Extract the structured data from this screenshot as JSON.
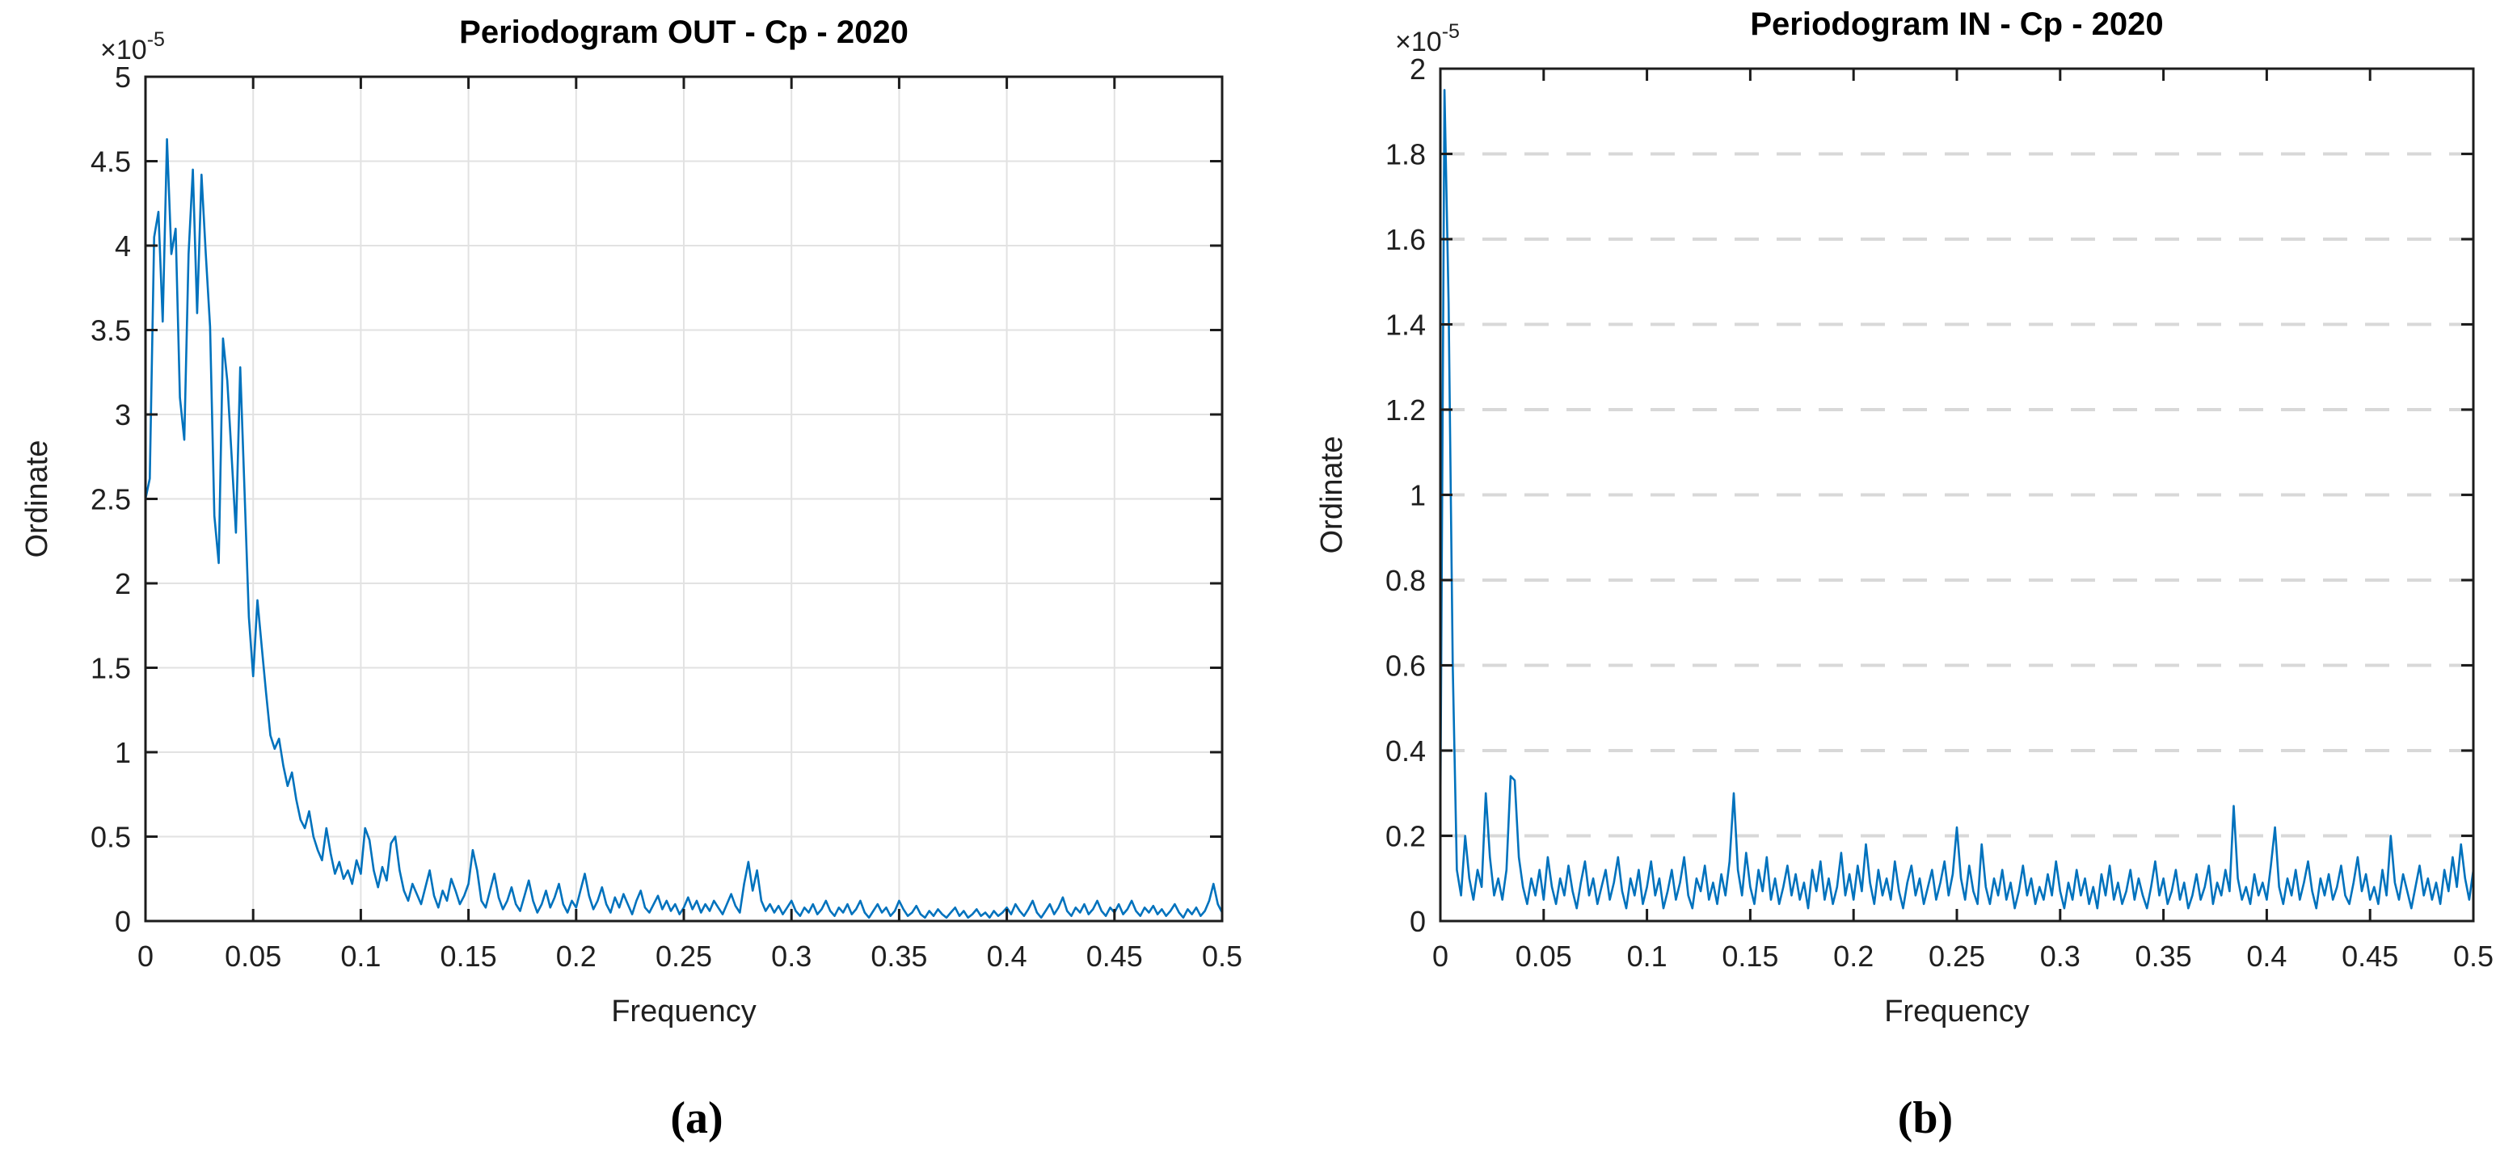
{
  "figure": {
    "background": "#ffffff",
    "labels": {
      "a": "(a)",
      "b": "(b)"
    }
  },
  "colors": {
    "line": "#0072BD",
    "axis": "#1c1c1c",
    "tick_text": "#1f1f1f",
    "title_text": "#000000",
    "grid_solid": "#e2e2e2",
    "grid_dashed": "#d8d8d8"
  },
  "chart_data": [
    {
      "id": "chart-a",
      "type": "line",
      "title": "Periodogram OUT - Cp - 2020",
      "xlabel": "Frequency",
      "ylabel": "Ordinate",
      "y_exponent": {
        "base": "×10",
        "exp": "-5"
      },
      "xlim": [
        0,
        0.5
      ],
      "ylim": [
        0,
        5
      ],
      "x_ticks": [
        0,
        0.05,
        0.1,
        0.15,
        0.2,
        0.25,
        0.3,
        0.35,
        0.4,
        0.45,
        0.5
      ],
      "x_tick_labels": [
        "0",
        "0.05",
        "0.1",
        "0.15",
        "0.2",
        "0.25",
        "0.3",
        "0.35",
        "0.4",
        "0.45",
        "0.5"
      ],
      "y_ticks": [
        0,
        0.5,
        1,
        1.5,
        2,
        2.5,
        3,
        3.5,
        4,
        4.5,
        5
      ],
      "y_tick_labels": [
        "0",
        "0.5",
        "1",
        "1.5",
        "2",
        "2.5",
        "3",
        "3.5",
        "4",
        "4.5",
        "5"
      ],
      "grid": {
        "horizontal": true,
        "vertical": true,
        "style": "solid"
      },
      "line_color": "#0072BD",
      "series_unit": "1e-5",
      "x_start": 0,
      "x_step": 0.002,
      "y_values": [
        2.5,
        2.62,
        4.05,
        4.2,
        3.55,
        4.63,
        3.95,
        4.1,
        3.1,
        2.85,
        3.95,
        4.45,
        3.6,
        4.42,
        3.95,
        3.52,
        2.4,
        2.12,
        3.45,
        3.2,
        2.75,
        2.3,
        3.28,
        2.55,
        1.8,
        1.45,
        1.9,
        1.62,
        1.35,
        1.1,
        1.02,
        1.08,
        0.92,
        0.8,
        0.88,
        0.72,
        0.6,
        0.55,
        0.65,
        0.5,
        0.42,
        0.36,
        0.55,
        0.4,
        0.28,
        0.35,
        0.25,
        0.3,
        0.22,
        0.36,
        0.28,
        0.55,
        0.48,
        0.3,
        0.2,
        0.32,
        0.24,
        0.46,
        0.5,
        0.3,
        0.18,
        0.12,
        0.22,
        0.16,
        0.1,
        0.2,
        0.3,
        0.15,
        0.08,
        0.18,
        0.12,
        0.25,
        0.18,
        0.1,
        0.15,
        0.22,
        0.42,
        0.3,
        0.12,
        0.08,
        0.18,
        0.28,
        0.14,
        0.07,
        0.12,
        0.2,
        0.1,
        0.06,
        0.15,
        0.24,
        0.12,
        0.05,
        0.1,
        0.18,
        0.08,
        0.14,
        0.22,
        0.1,
        0.05,
        0.12,
        0.08,
        0.18,
        0.28,
        0.15,
        0.07,
        0.12,
        0.2,
        0.1,
        0.05,
        0.14,
        0.08,
        0.16,
        0.1,
        0.04,
        0.12,
        0.18,
        0.08,
        0.05,
        0.1,
        0.15,
        0.07,
        0.12,
        0.06,
        0.1,
        0.04,
        0.08,
        0.14,
        0.07,
        0.12,
        0.05,
        0.1,
        0.06,
        0.12,
        0.08,
        0.04,
        0.1,
        0.16,
        0.09,
        0.05,
        0.22,
        0.35,
        0.18,
        0.3,
        0.12,
        0.06,
        0.1,
        0.05,
        0.09,
        0.04,
        0.08,
        0.12,
        0.06,
        0.03,
        0.08,
        0.05,
        0.1,
        0.04,
        0.07,
        0.12,
        0.06,
        0.03,
        0.08,
        0.05,
        0.1,
        0.04,
        0.07,
        0.12,
        0.05,
        0.02,
        0.06,
        0.1,
        0.05,
        0.08,
        0.03,
        0.06,
        0.12,
        0.07,
        0.03,
        0.05,
        0.09,
        0.04,
        0.02,
        0.06,
        0.03,
        0.07,
        0.04,
        0.02,
        0.05,
        0.08,
        0.03,
        0.06,
        0.02,
        0.04,
        0.07,
        0.03,
        0.05,
        0.02,
        0.06,
        0.03,
        0.05,
        0.08,
        0.04,
        0.1,
        0.06,
        0.03,
        0.07,
        0.12,
        0.05,
        0.02,
        0.06,
        0.1,
        0.04,
        0.08,
        0.14,
        0.06,
        0.03,
        0.08,
        0.05,
        0.1,
        0.04,
        0.07,
        0.12,
        0.06,
        0.03,
        0.08,
        0.05,
        0.1,
        0.04,
        0.07,
        0.12,
        0.06,
        0.03,
        0.08,
        0.05,
        0.09,
        0.04,
        0.07,
        0.03,
        0.06,
        0.1,
        0.05,
        0.02,
        0.07,
        0.04,
        0.08,
        0.03,
        0.06,
        0.12,
        0.22,
        0.1,
        0.05
      ]
    },
    {
      "id": "chart-b",
      "type": "line",
      "title": "Periodogram IN - Cp - 2020",
      "xlabel": "Frequency",
      "ylabel": "Ordinate",
      "y_exponent": {
        "base": "×10",
        "exp": "-5"
      },
      "xlim": [
        0,
        0.5
      ],
      "ylim": [
        0,
        2
      ],
      "x_ticks": [
        0,
        0.05,
        0.1,
        0.15,
        0.2,
        0.25,
        0.3,
        0.35,
        0.4,
        0.45,
        0.5
      ],
      "x_tick_labels": [
        "0",
        "0.05",
        "0.1",
        "0.15",
        "0.2",
        "0.25",
        "0.3",
        "0.35",
        "0.4",
        "0.45",
        "0.5"
      ],
      "y_ticks": [
        0,
        0.2,
        0.4,
        0.6,
        0.8,
        1,
        1.2,
        1.4,
        1.6,
        1.8,
        2
      ],
      "y_tick_labels": [
        "0",
        "0.2",
        "0.4",
        "0.6",
        "0.8",
        "1",
        "1.2",
        "1.4",
        "1.6",
        "1.8",
        "2"
      ],
      "grid": {
        "horizontal": true,
        "vertical": false,
        "style": "dashed"
      },
      "line_color": "#0072BD",
      "series_unit": "1e-5",
      "x_start": 0,
      "x_step": 0.002,
      "y_values": [
        0.25,
        1.95,
        1.45,
        0.6,
        0.12,
        0.06,
        0.2,
        0.1,
        0.05,
        0.12,
        0.08,
        0.3,
        0.15,
        0.06,
        0.1,
        0.05,
        0.12,
        0.34,
        0.33,
        0.15,
        0.08,
        0.04,
        0.1,
        0.06,
        0.12,
        0.05,
        0.15,
        0.08,
        0.04,
        0.1,
        0.06,
        0.13,
        0.07,
        0.03,
        0.09,
        0.14,
        0.06,
        0.1,
        0.04,
        0.08,
        0.12,
        0.05,
        0.09,
        0.15,
        0.07,
        0.03,
        0.1,
        0.06,
        0.12,
        0.04,
        0.08,
        0.14,
        0.06,
        0.1,
        0.03,
        0.07,
        0.12,
        0.05,
        0.09,
        0.15,
        0.06,
        0.03,
        0.1,
        0.07,
        0.13,
        0.05,
        0.09,
        0.04,
        0.11,
        0.06,
        0.14,
        0.3,
        0.12,
        0.06,
        0.16,
        0.08,
        0.04,
        0.12,
        0.07,
        0.15,
        0.05,
        0.1,
        0.04,
        0.08,
        0.13,
        0.06,
        0.11,
        0.05,
        0.09,
        0.03,
        0.12,
        0.07,
        0.14,
        0.05,
        0.1,
        0.04,
        0.08,
        0.16,
        0.06,
        0.11,
        0.05,
        0.13,
        0.07,
        0.18,
        0.09,
        0.04,
        0.12,
        0.06,
        0.1,
        0.05,
        0.14,
        0.07,
        0.03,
        0.09,
        0.13,
        0.06,
        0.1,
        0.04,
        0.08,
        0.12,
        0.05,
        0.09,
        0.14,
        0.06,
        0.11,
        0.22,
        0.1,
        0.05,
        0.13,
        0.07,
        0.04,
        0.18,
        0.08,
        0.04,
        0.1,
        0.06,
        0.12,
        0.05,
        0.09,
        0.03,
        0.07,
        0.13,
        0.06,
        0.1,
        0.04,
        0.08,
        0.05,
        0.11,
        0.06,
        0.14,
        0.07,
        0.03,
        0.09,
        0.05,
        0.12,
        0.06,
        0.1,
        0.04,
        0.08,
        0.03,
        0.11,
        0.06,
        0.13,
        0.05,
        0.09,
        0.04,
        0.07,
        0.12,
        0.05,
        0.1,
        0.06,
        0.03,
        0.08,
        0.14,
        0.06,
        0.1,
        0.04,
        0.07,
        0.12,
        0.05,
        0.09,
        0.03,
        0.06,
        0.11,
        0.05,
        0.08,
        0.13,
        0.04,
        0.09,
        0.06,
        0.12,
        0.07,
        0.27,
        0.1,
        0.05,
        0.08,
        0.04,
        0.11,
        0.06,
        0.09,
        0.05,
        0.13,
        0.22,
        0.08,
        0.04,
        0.1,
        0.06,
        0.12,
        0.05,
        0.09,
        0.14,
        0.07,
        0.03,
        0.1,
        0.06,
        0.11,
        0.05,
        0.08,
        0.13,
        0.06,
        0.04,
        0.09,
        0.15,
        0.07,
        0.11,
        0.05,
        0.08,
        0.04,
        0.12,
        0.06,
        0.2,
        0.09,
        0.05,
        0.11,
        0.07,
        0.03,
        0.08,
        0.13,
        0.06,
        0.1,
        0.05,
        0.09,
        0.04,
        0.12,
        0.07,
        0.15,
        0.08,
        0.18,
        0.1,
        0.05,
        0.12
      ]
    }
  ]
}
